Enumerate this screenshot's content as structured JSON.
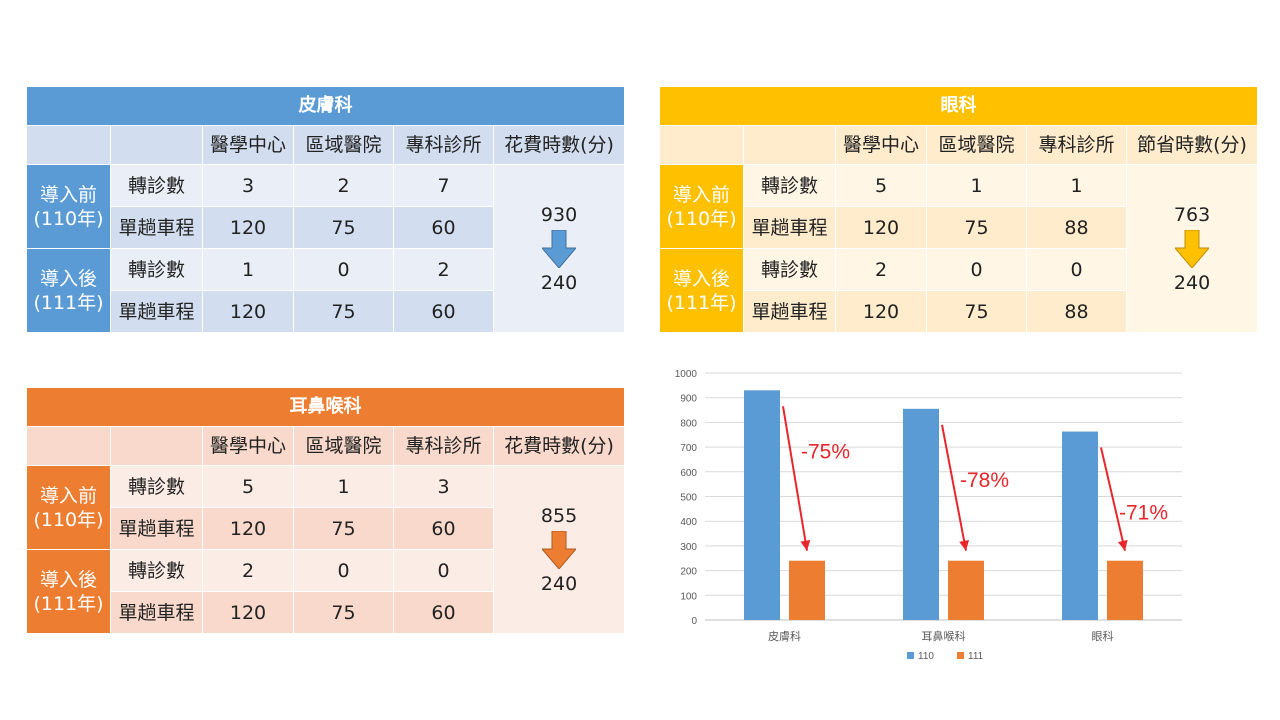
{
  "tables": {
    "derm": {
      "title": "皮膚科",
      "headers": [
        "醫學中心",
        "區域醫院",
        "專科診所",
        "花費時數(分)"
      ],
      "before_label": "導入前\n(110年)",
      "after_label": "導入後\n(111年)",
      "row_referrals": "轉診數",
      "row_distance": "單趟車程",
      "before_referrals": [
        "3",
        "2",
        "7"
      ],
      "before_distance": [
        "120",
        "75",
        "60"
      ],
      "after_referrals": [
        "1",
        "0",
        "2"
      ],
      "after_distance": [
        "120",
        "75",
        "60"
      ],
      "time_before": "930",
      "time_after": "240"
    },
    "eye": {
      "title": "眼科",
      "headers": [
        "醫學中心",
        "區域醫院",
        "專科診所",
        "節省時數(分)"
      ],
      "before_label": "導入前\n(110年)",
      "after_label": "導入後\n(111年)",
      "row_referrals": "轉診數",
      "row_distance": "單趟車程",
      "before_referrals": [
        "5",
        "1",
        "1"
      ],
      "before_distance": [
        "120",
        "75",
        "88"
      ],
      "after_referrals": [
        "2",
        "0",
        "0"
      ],
      "after_distance": [
        "120",
        "75",
        "88"
      ],
      "time_before": "763",
      "time_after": "240"
    },
    "ent": {
      "title": "耳鼻喉科",
      "headers": [
        "醫學中心",
        "區域醫院",
        "專科診所",
        "花費時數(分)"
      ],
      "before_label": "導入前\n(110年)",
      "after_label": "導入後\n(111年)",
      "row_referrals": "轉診數",
      "row_distance": "單趟車程",
      "before_referrals": [
        "5",
        "1",
        "3"
      ],
      "before_distance": [
        "120",
        "75",
        "60"
      ],
      "after_referrals": [
        "2",
        "0",
        "0"
      ],
      "after_distance": [
        "120",
        "75",
        "60"
      ],
      "time_before": "855",
      "time_after": "240"
    }
  },
  "colors": {
    "blue": "#5b9bd5",
    "yellow": "#ffc000",
    "orange": "#ed7d31",
    "annotation": "#e8262b"
  },
  "chart_data": {
    "type": "bar",
    "categories": [
      "皮膚科",
      "耳鼻喉科",
      "眼科"
    ],
    "series": [
      {
        "name": "110",
        "values": [
          930,
          855,
          763
        ],
        "color": "#5b9bd5"
      },
      {
        "name": "111",
        "values": [
          240,
          240,
          240
        ],
        "color": "#ed7d31"
      }
    ],
    "annotations": [
      "-75%",
      "-78%",
      "-71%"
    ],
    "ylim": [
      0,
      1000
    ],
    "yticks": [
      0,
      100,
      200,
      300,
      400,
      500,
      600,
      700,
      800,
      900,
      1000
    ],
    "grid": true,
    "legend": "bottom",
    "title": "",
    "xlabel": "",
    "ylabel": ""
  }
}
